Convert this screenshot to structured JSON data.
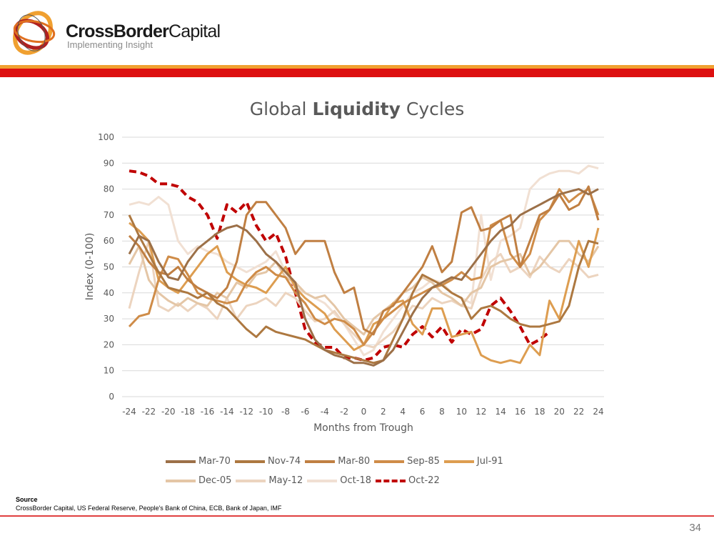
{
  "header": {
    "brand_bold": "CrossBorder",
    "brand_regular": "Capital",
    "tagline": "Implementing Insight",
    "colors": {
      "accent_orange": "#f0a030",
      "accent_red": "#dd1010"
    }
  },
  "chart_data": {
    "type": "line",
    "title_parts": [
      "Global",
      "Liquidity",
      "Cycles"
    ],
    "title": "Global Liquidity Cycles",
    "xlabel": "Months from Trough",
    "ylabel": "Index (0-100)",
    "xlim": [
      -24,
      24
    ],
    "ylim": [
      0,
      100
    ],
    "x_ticks": [
      -24,
      -22,
      -20,
      -18,
      -16,
      -14,
      -12,
      -10,
      -8,
      -6,
      -4,
      -2,
      0,
      2,
      4,
      6,
      8,
      10,
      12,
      14,
      16,
      18,
      20,
      22,
      24
    ],
    "y_ticks": [
      0,
      10,
      20,
      30,
      40,
      50,
      60,
      70,
      80,
      90,
      100
    ],
    "grid": "horizontal",
    "legend_position": "bottom",
    "x": [
      -24,
      -23,
      -22,
      -21,
      -20,
      -19,
      -18,
      -17,
      -16,
      -15,
      -14,
      -13,
      -12,
      -11,
      -10,
      -9,
      -8,
      -7,
      -6,
      -5,
      -4,
      -3,
      -2,
      -1,
      0,
      1,
      2,
      3,
      4,
      5,
      6,
      7,
      8,
      9,
      10,
      11,
      12,
      13,
      14,
      15,
      16,
      17,
      18,
      19,
      20,
      21,
      22,
      23,
      24
    ],
    "series": [
      {
        "name": "Mar-70",
        "color": "#9c7048",
        "dashed": false,
        "values": [
          55,
          62,
          60,
          52,
          46,
          45,
          52,
          57,
          60,
          63,
          65,
          66,
          64,
          60,
          55,
          52,
          48,
          44,
          30,
          22,
          18,
          16,
          15,
          13,
          13,
          12,
          14,
          18,
          25,
          32,
          38,
          42,
          44,
          46,
          45,
          50,
          55,
          60,
          64,
          66,
          70,
          72,
          74,
          76,
          78,
          79,
          80,
          78,
          80
        ]
      },
      {
        "name": "Nov-74",
        "color": "#ad7840",
        "dashed": false,
        "values": [
          70,
          62,
          55,
          48,
          42,
          41,
          40,
          38,
          40,
          36,
          34,
          30,
          26,
          23,
          27,
          25,
          24,
          23,
          22,
          20,
          18,
          17,
          16,
          15,
          14,
          13,
          14,
          22,
          30,
          40,
          47,
          45,
          43,
          40,
          38,
          30,
          34,
          35,
          33,
          30,
          28,
          27,
          27,
          28,
          29,
          35,
          50,
          60,
          59
        ]
      },
      {
        "name": "Mar-80",
        "color": "#c07f42",
        "dashed": false,
        "values": [
          62,
          58,
          52,
          48,
          47,
          50,
          45,
          42,
          40,
          38,
          42,
          52,
          70,
          75,
          75,
          70,
          65,
          55,
          60,
          60,
          60,
          48,
          40,
          42,
          26,
          24,
          33,
          35,
          40,
          45,
          50,
          58,
          48,
          52,
          71,
          73,
          64,
          65,
          68,
          70,
          50,
          60,
          70,
          72,
          78,
          72,
          74,
          81,
          68
        ]
      },
      {
        "name": "Sep-85",
        "color": "#cf8c48",
        "dashed": false,
        "values": [
          27,
          31,
          32,
          45,
          54,
          53,
          47,
          40,
          38,
          37,
          36,
          37,
          44,
          48,
          50,
          47,
          46,
          40,
          36,
          30,
          28,
          30,
          29,
          26,
          20,
          25,
          30,
          33,
          36,
          38,
          40,
          42,
          43,
          45,
          48,
          45,
          46,
          66,
          68,
          55,
          50,
          55,
          68,
          72,
          80,
          75,
          78,
          80,
          70
        ]
      },
      {
        "name": "Jul-91",
        "color": "#dd9d50",
        "dashed": false,
        "values": [
          67,
          64,
          60,
          45,
          42,
          40,
          45,
          50,
          55,
          58,
          48,
          45,
          43,
          42,
          40,
          45,
          50,
          42,
          38,
          35,
          32,
          26,
          22,
          18,
          20,
          28,
          30,
          36,
          37,
          28,
          24,
          34,
          34,
          23,
          24,
          25,
          16,
          14,
          13,
          14,
          13,
          20,
          16,
          37,
          30,
          45,
          60,
          50,
          65
        ]
      },
      {
        "name": "Dec-05",
        "color": "#e4c6a6",
        "dashed": false,
        "values": [
          51,
          58,
          45,
          40,
          37,
          35,
          38,
          36,
          35,
          40,
          38,
          44,
          42,
          47,
          48,
          52,
          46,
          44,
          40,
          38,
          39,
          35,
          30,
          27,
          24,
          30,
          33,
          36,
          40,
          42,
          46,
          44,
          40,
          38,
          35,
          40,
          42,
          50,
          52,
          53,
          55,
          47,
          50,
          55,
          60,
          60,
          55,
          52,
          58
        ]
      },
      {
        "name": "May-12",
        "color": "#ecd4bf",
        "dashed": false,
        "values": [
          34,
          48,
          60,
          35,
          33,
          36,
          33,
          36,
          34,
          30,
          38,
          30,
          35,
          36,
          38,
          35,
          40,
          38,
          33,
          29,
          30,
          33,
          28,
          24,
          20,
          19,
          22,
          25,
          30,
          35,
          34,
          38,
          36,
          37,
          35,
          34,
          45,
          52,
          55,
          48,
          50,
          46,
          54,
          50,
          48,
          53,
          50,
          46,
          47
        ]
      },
      {
        "name": "Oct-18",
        "color": "#f1e0d3",
        "dashed": false,
        "values": [
          74,
          75,
          74,
          77,
          74,
          60,
          55,
          58,
          56,
          55,
          52,
          50,
          48,
          50,
          52,
          56,
          48,
          42,
          40,
          38,
          36,
          32,
          28,
          22,
          16,
          18,
          25,
          30,
          35,
          40,
          42,
          45,
          44,
          40,
          38,
          36,
          70,
          45,
          60,
          62,
          65,
          80,
          84,
          86,
          87,
          87,
          86,
          89,
          88
        ]
      },
      {
        "name": "Oct-22",
        "color": "#c00000",
        "dashed": true,
        "values": [
          87,
          86.5,
          85,
          82,
          82,
          81,
          77,
          75,
          70,
          61,
          74,
          71,
          75,
          66,
          60,
          63,
          54,
          40,
          26,
          21,
          19,
          19,
          15,
          15,
          14,
          15,
          19,
          20,
          19,
          24,
          27,
          23,
          27,
          21,
          26,
          24,
          26,
          35,
          38,
          33,
          27,
          20,
          22,
          25,
          null,
          null,
          null,
          null,
          null
        ]
      }
    ]
  },
  "source": {
    "heading": "Source",
    "text": "CrossBorder Capital, US Federal Reserve, People's Bank of China, ECB, Bank of Japan, IMF"
  },
  "footer": {
    "page_number": "34"
  }
}
